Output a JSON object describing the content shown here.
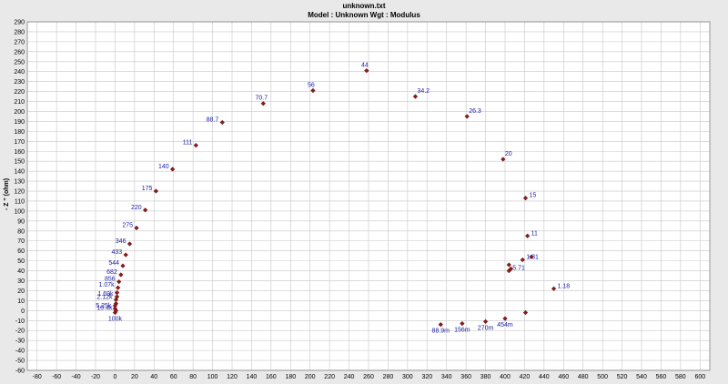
{
  "header": {
    "title": "unknown.txt",
    "subtitle": "Model : Unknown     Wgt : Modulus"
  },
  "chart_data": {
    "type": "scatter",
    "title": "unknown.txt",
    "subtitle": "Model : Unknown     Wgt : Modulus",
    "xlabel": "",
    "ylabel": "- Z '' (ohm)",
    "xlim": [
      -90,
      610
    ],
    "ylim": [
      -60,
      290
    ],
    "x_ticks": [
      -80,
      -60,
      -40,
      -20,
      0,
      20,
      40,
      60,
      80,
      100,
      120,
      140,
      160,
      180,
      200,
      220,
      240,
      260,
      280,
      300,
      320,
      340,
      360,
      380,
      400,
      420,
      440,
      460,
      480,
      500,
      520,
      540,
      560,
      580,
      600
    ],
    "y_ticks": [
      -60,
      -50,
      -40,
      -30,
      -20,
      -10,
      0,
      10,
      20,
      30,
      40,
      50,
      60,
      70,
      80,
      90,
      100,
      110,
      120,
      130,
      140,
      150,
      160,
      170,
      180,
      190,
      200,
      210,
      220,
      230,
      240,
      250,
      260,
      270,
      280,
      290
    ],
    "grid": true,
    "colors": {
      "marker": "#8b1a1a",
      "label": "#1a1aa6",
      "grid": "#c8c8c8",
      "plot_bg": "#ffffff"
    },
    "points": [
      {
        "x": 258,
        "y": 241,
        "label": "44"
      },
      {
        "x": 203,
        "y": 221,
        "label": "56"
      },
      {
        "x": 308,
        "y": 215,
        "label": "34.2"
      },
      {
        "x": 152,
        "y": 208,
        "label": "70.7"
      },
      {
        "x": 361,
        "y": 195,
        "label": "26.3"
      },
      {
        "x": 110,
        "y": 189,
        "label": "88.7"
      },
      {
        "x": 83,
        "y": 166,
        "label": "111"
      },
      {
        "x": 398,
        "y": 152,
        "label": "20"
      },
      {
        "x": 59,
        "y": 142,
        "label": "140"
      },
      {
        "x": 42,
        "y": 120,
        "label": "175"
      },
      {
        "x": 421,
        "y": 113,
        "label": "15"
      },
      {
        "x": 31,
        "y": 101,
        "label": "220"
      },
      {
        "x": 22,
        "y": 83,
        "label": "275"
      },
      {
        "x": 423,
        "y": 75,
        "label": "11"
      },
      {
        "x": 15,
        "y": 67,
        "label": "346"
      },
      {
        "x": 11,
        "y": 56,
        "label": "433"
      },
      {
        "x": 427,
        "y": 54,
        "label": ""
      },
      {
        "x": 418,
        "y": 51,
        "label": "1.81"
      },
      {
        "x": 8,
        "y": 45,
        "label": "544"
      },
      {
        "x": 404,
        "y": 46,
        "label": ""
      },
      {
        "x": 406,
        "y": 42,
        "label": ""
      },
      {
        "x": 404,
        "y": 40,
        "label": "5.71"
      },
      {
        "x": 6,
        "y": 36,
        "label": "682"
      },
      {
        "x": 4,
        "y": 29,
        "label": "856"
      },
      {
        "x": 450,
        "y": 22,
        "label": "1.18"
      },
      {
        "x": 3,
        "y": 23,
        "label": "1.07k"
      },
      {
        "x": 2,
        "y": 18,
        "label": ""
      },
      {
        "x": 2,
        "y": 14,
        "label": "1.69k"
      },
      {
        "x": 1,
        "y": 11,
        "label": "2.12k"
      },
      {
        "x": 1,
        "y": 7,
        "label": ""
      },
      {
        "x": 0,
        "y": 5,
        "label": ""
      },
      {
        "x": 0,
        "y": 2,
        "label": "5.25k"
      },
      {
        "x": 1,
        "y": 0,
        "label": "10.4k"
      },
      {
        "x": 0,
        "y": -2,
        "label": "100k"
      },
      {
        "x": 421,
        "y": -2,
        "label": ""
      },
      {
        "x": 400,
        "y": -8,
        "label": "454m"
      },
      {
        "x": 380,
        "y": -11,
        "label": "270m"
      },
      {
        "x": 356,
        "y": -13,
        "label": "156m"
      },
      {
        "x": 334,
        "y": -14,
        "label": "88.9m"
      }
    ]
  }
}
